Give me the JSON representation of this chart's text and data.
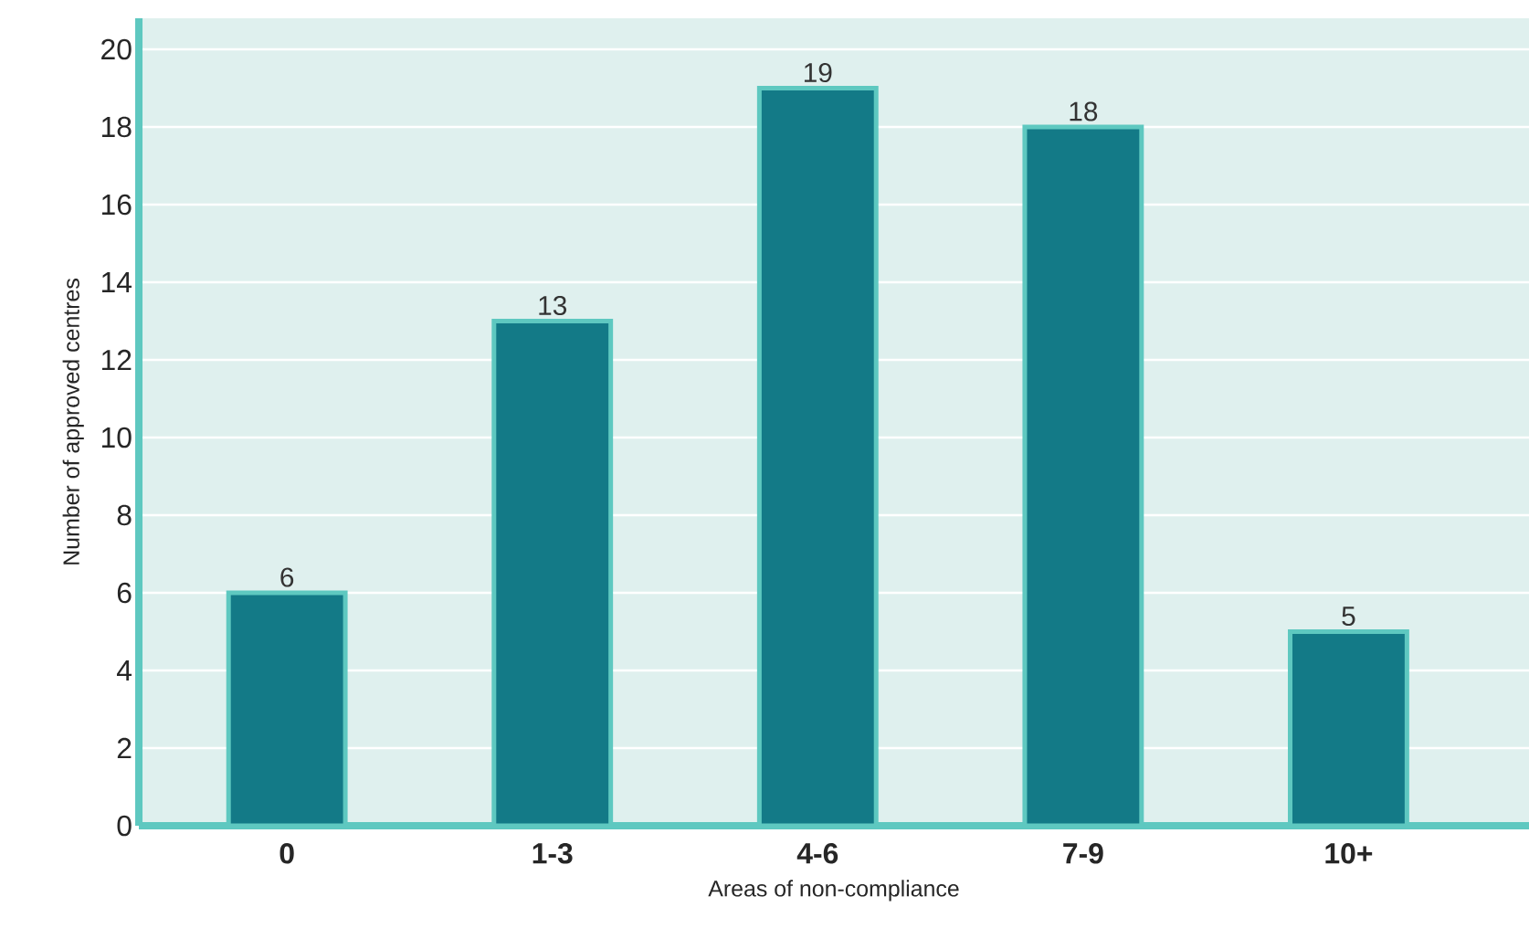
{
  "chart_data": {
    "type": "bar",
    "xlabel": "Areas of non-compliance",
    "ylabel": "Number of approved centres",
    "categories": [
      "0",
      "1-3",
      "4-6",
      "7-9",
      "10+"
    ],
    "values": [
      6,
      13,
      19,
      18,
      5
    ],
    "color": "#137a87",
    "ylim": [
      0,
      20.8
    ],
    "yticks": [
      0,
      2,
      4,
      6,
      8,
      10,
      12,
      14,
      16,
      18,
      20
    ],
    "grid": "y",
    "data_labels": true
  }
}
